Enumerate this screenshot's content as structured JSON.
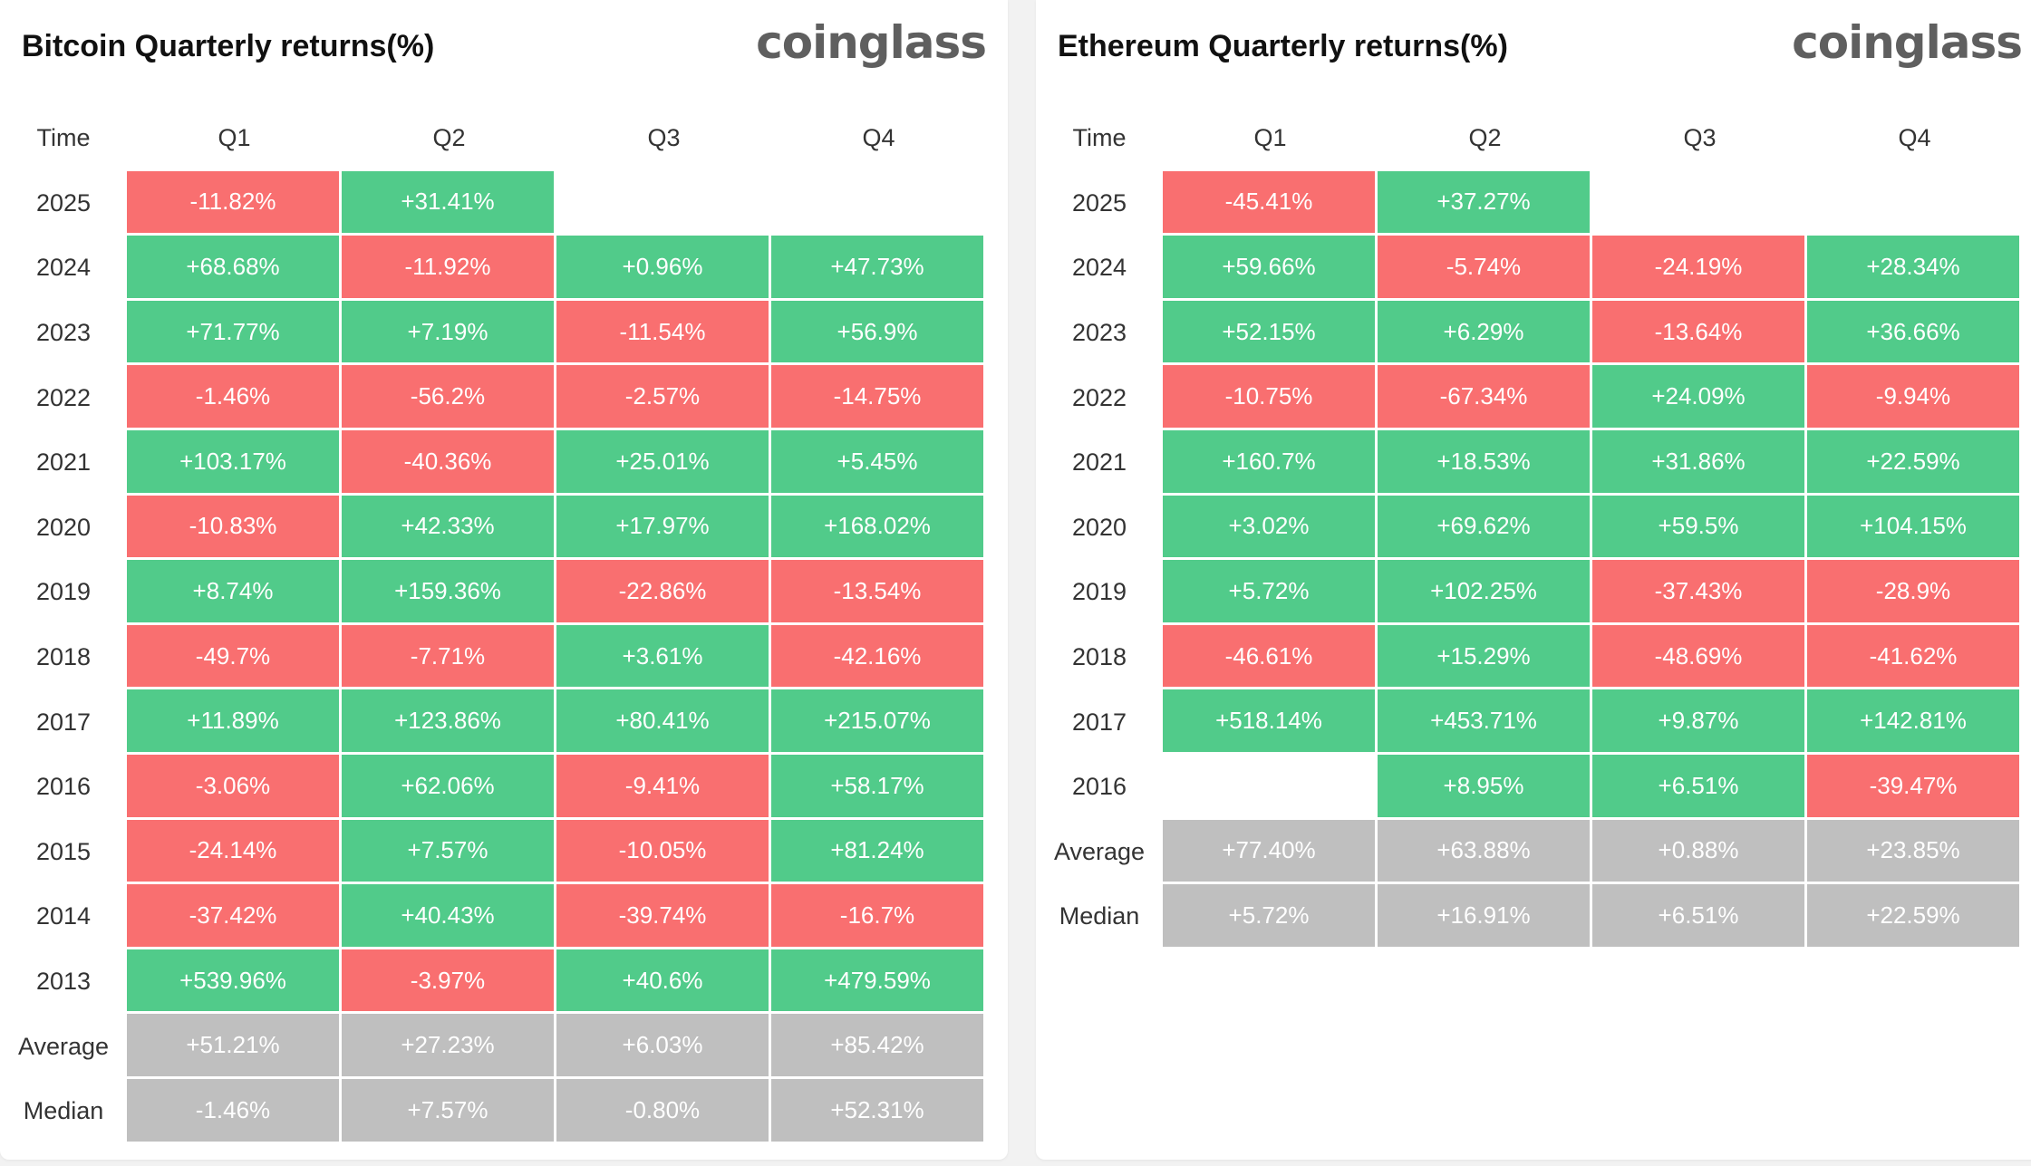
{
  "brand": "coinglass",
  "colors": {
    "positive": "#51cb8a",
    "negative": "#f96f70",
    "stat": "#bfbfbf"
  },
  "chart_data": [
    {
      "type": "table",
      "title": "Bitcoin Quarterly returns(%)",
      "columns": [
        "Time",
        "Q1",
        "Q2",
        "Q3",
        "Q4"
      ],
      "rows": [
        {
          "label": "2025",
          "values": [
            "-11.82%",
            "+31.41%",
            "",
            ""
          ]
        },
        {
          "label": "2024",
          "values": [
            "+68.68%",
            "-11.92%",
            "+0.96%",
            "+47.73%"
          ]
        },
        {
          "label": "2023",
          "values": [
            "+71.77%",
            "+7.19%",
            "-11.54%",
            "+56.9%"
          ]
        },
        {
          "label": "2022",
          "values": [
            "-1.46%",
            "-56.2%",
            "-2.57%",
            "-14.75%"
          ]
        },
        {
          "label": "2021",
          "values": [
            "+103.17%",
            "-40.36%",
            "+25.01%",
            "+5.45%"
          ]
        },
        {
          "label": "2020",
          "values": [
            "-10.83%",
            "+42.33%",
            "+17.97%",
            "+168.02%"
          ]
        },
        {
          "label": "2019",
          "values": [
            "+8.74%",
            "+159.36%",
            "-22.86%",
            "-13.54%"
          ]
        },
        {
          "label": "2018",
          "values": [
            "-49.7%",
            "-7.71%",
            "+3.61%",
            "-42.16%"
          ]
        },
        {
          "label": "2017",
          "values": [
            "+11.89%",
            "+123.86%",
            "+80.41%",
            "+215.07%"
          ]
        },
        {
          "label": "2016",
          "values": [
            "-3.06%",
            "+62.06%",
            "-9.41%",
            "+58.17%"
          ]
        },
        {
          "label": "2015",
          "values": [
            "-24.14%",
            "+7.57%",
            "-10.05%",
            "+81.24%"
          ]
        },
        {
          "label": "2014",
          "values": [
            "-37.42%",
            "+40.43%",
            "-39.74%",
            "-16.7%"
          ]
        },
        {
          "label": "2013",
          "values": [
            "+539.96%",
            "-3.97%",
            "+40.6%",
            "+479.59%"
          ]
        }
      ],
      "stats": [
        {
          "label": "Average",
          "values": [
            "+51.21%",
            "+27.23%",
            "+6.03%",
            "+85.42%"
          ]
        },
        {
          "label": "Median",
          "values": [
            "-1.46%",
            "+7.57%",
            "-0.80%",
            "+52.31%"
          ]
        }
      ]
    },
    {
      "type": "table",
      "title": "Ethereum Quarterly returns(%)",
      "columns": [
        "Time",
        "Q1",
        "Q2",
        "Q3",
        "Q4"
      ],
      "rows": [
        {
          "label": "2025",
          "values": [
            "-45.41%",
            "+37.27%",
            "",
            ""
          ]
        },
        {
          "label": "2024",
          "values": [
            "+59.66%",
            "-5.74%",
            "-24.19%",
            "+28.34%"
          ]
        },
        {
          "label": "2023",
          "values": [
            "+52.15%",
            "+6.29%",
            "-13.64%",
            "+36.66%"
          ]
        },
        {
          "label": "2022",
          "values": [
            "-10.75%",
            "-67.34%",
            "+24.09%",
            "-9.94%"
          ]
        },
        {
          "label": "2021",
          "values": [
            "+160.7%",
            "+18.53%",
            "+31.86%",
            "+22.59%"
          ]
        },
        {
          "label": "2020",
          "values": [
            "+3.02%",
            "+69.62%",
            "+59.5%",
            "+104.15%"
          ]
        },
        {
          "label": "2019",
          "values": [
            "+5.72%",
            "+102.25%",
            "-37.43%",
            "-28.9%"
          ]
        },
        {
          "label": "2018",
          "values": [
            "-46.61%",
            "+15.29%",
            "-48.69%",
            "-41.62%"
          ]
        },
        {
          "label": "2017",
          "values": [
            "+518.14%",
            "+453.71%",
            "+9.87%",
            "+142.81%"
          ]
        },
        {
          "label": "2016",
          "values": [
            "",
            "+8.95%",
            "+6.51%",
            "-39.47%"
          ]
        }
      ],
      "stats": [
        {
          "label": "Average",
          "values": [
            "+77.40%",
            "+63.88%",
            "+0.88%",
            "+23.85%"
          ]
        },
        {
          "label": "Median",
          "values": [
            "+5.72%",
            "+16.91%",
            "+6.51%",
            "+22.59%"
          ]
        }
      ]
    }
  ]
}
